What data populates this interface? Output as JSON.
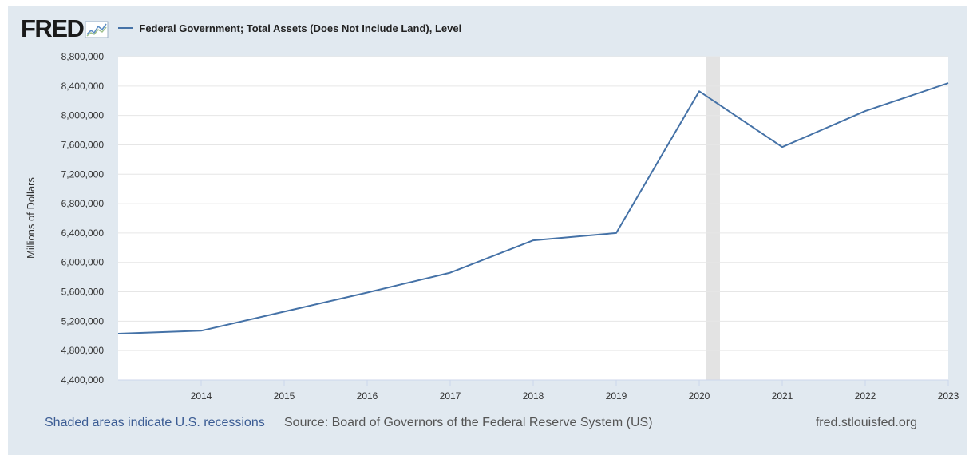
{
  "header": {
    "logo_text": "FRED",
    "legend_label": "Federal Government; Total Assets (Does Not Include Land), Level"
  },
  "footer": {
    "recession_note": "Shaded areas indicate U.S. recessions",
    "source": "Source: Board of Governors of the Federal Reserve System (US)",
    "url": "fred.stlouisfed.org"
  },
  "colors": {
    "series": "#4572a7",
    "background": "#e1e9f0",
    "recession": "#e3e3e3",
    "link": "#3b5c94"
  },
  "icons": [
    "fred-chart-icon"
  ],
  "chart_data": {
    "type": "line",
    "title": "",
    "ylabel": "Millions of Dollars",
    "xlabel": "",
    "ylim": [
      4400000,
      8800000
    ],
    "y_ticks": [
      4400000,
      4800000,
      5200000,
      5600000,
      6000000,
      6400000,
      6800000,
      7200000,
      7600000,
      8000000,
      8400000,
      8800000
    ],
    "y_tick_labels": [
      "4,400,000",
      "4,800,000",
      "5,200,000",
      "5,600,000",
      "6,000,000",
      "6,400,000",
      "6,800,000",
      "7,200,000",
      "7,600,000",
      "8,000,000",
      "8,400,000",
      "8,800,000"
    ],
    "x_range": [
      2013,
      2023
    ],
    "x_ticks": [
      2014,
      2015,
      2016,
      2017,
      2018,
      2019,
      2020,
      2021,
      2022,
      2023
    ],
    "x_tick_labels": [
      "2014",
      "2015",
      "2016",
      "2017",
      "2018",
      "2019",
      "2020",
      "2021",
      "2022",
      "2023"
    ],
    "grid": true,
    "legend": "top-left",
    "recessions": [
      [
        2020.08,
        2020.25
      ]
    ],
    "series": [
      {
        "name": "Federal Government; Total Assets (Does Not Include Land), Level",
        "x": [
          2013,
          2014,
          2015,
          2016,
          2017,
          2018,
          2019,
          2020,
          2021,
          2022,
          2023
        ],
        "values": [
          5030000,
          5070000,
          5330000,
          5590000,
          5860000,
          6300000,
          6400000,
          8330000,
          7570000,
          8060000,
          8440000
        ]
      }
    ]
  }
}
